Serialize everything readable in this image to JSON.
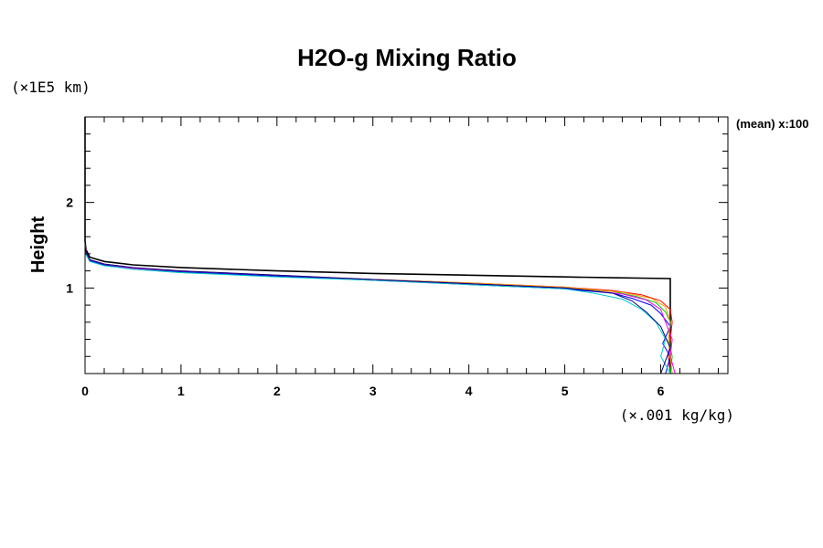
{
  "chart_data": {
    "type": "line",
    "title": "H2O-g Mixing Ratio",
    "ylabel": "Height",
    "y_unit": "(×1E5 km)",
    "x_unit": "(×.001 kg/kg)",
    "annotation": "(mean) x:100",
    "xlim": [
      0,
      6.7
    ],
    "ylim": [
      0,
      3.0
    ],
    "x_ticks": [
      "0",
      "1",
      "2",
      "3",
      "4",
      "5",
      "6"
    ],
    "y_ticks": [
      "1",
      "2"
    ],
    "series": [
      {
        "color": "#000000",
        "x": [
          6.1,
          6.1,
          6.1,
          6.1,
          6.1,
          6.1,
          5.5,
          5.0,
          4.0,
          3.0,
          2.0,
          1.0,
          0.5,
          0.2,
          0.05,
          0.01,
          0.0,
          0.0
        ],
        "y": [
          0.0,
          0.3,
          0.5,
          0.8,
          1.0,
          1.11,
          1.12,
          1.13,
          1.15,
          1.17,
          1.2,
          1.24,
          1.27,
          1.31,
          1.36,
          1.45,
          1.55,
          3.0
        ]
      },
      {
        "color": "#ff0000",
        "x": [
          6.1,
          6.08,
          6.1,
          6.12,
          6.1,
          6.0,
          5.8,
          5.5,
          5.0,
          4.0,
          3.0,
          2.0,
          1.0,
          0.5,
          0.2,
          0.05,
          0.01,
          0.0,
          0.0
        ],
        "y": [
          0.0,
          0.2,
          0.4,
          0.6,
          0.75,
          0.85,
          0.92,
          0.97,
          1.01,
          1.06,
          1.1,
          1.14,
          1.19,
          1.23,
          1.28,
          1.33,
          1.42,
          1.52,
          3.0
        ]
      },
      {
        "color": "#00cc00",
        "x": [
          6.1,
          6.12,
          6.08,
          6.1,
          6.05,
          5.95,
          5.75,
          5.5,
          5.0,
          4.0,
          3.0,
          2.0,
          1.0,
          0.5,
          0.2,
          0.05,
          0.01,
          0.0,
          0.0
        ],
        "y": [
          0.0,
          0.2,
          0.4,
          0.6,
          0.72,
          0.83,
          0.9,
          0.96,
          1.0,
          1.05,
          1.1,
          1.14,
          1.18,
          1.22,
          1.27,
          1.32,
          1.41,
          1.5,
          3.0
        ]
      },
      {
        "color": "#0000ff",
        "x": [
          6.05,
          6.1,
          6.02,
          6.1,
          6.0,
          5.9,
          5.7,
          5.5,
          5.0,
          4.0,
          3.0,
          2.0,
          1.0,
          0.5,
          0.2,
          0.05,
          0.01,
          0.0,
          0.0
        ],
        "y": [
          0.0,
          0.2,
          0.35,
          0.55,
          0.7,
          0.8,
          0.88,
          0.94,
          0.99,
          1.04,
          1.09,
          1.14,
          1.19,
          1.23,
          1.27,
          1.32,
          1.4,
          1.5,
          3.0
        ]
      },
      {
        "color": "#00cccc",
        "x": [
          6.1,
          6.0,
          6.05,
          5.95,
          5.8,
          5.6,
          5.3,
          5.0,
          4.0,
          3.0,
          2.0,
          1.0,
          0.5,
          0.2,
          0.05,
          0.01,
          0.0,
          0.0
        ],
        "y": [
          0.0,
          0.2,
          0.4,
          0.6,
          0.75,
          0.87,
          0.94,
          0.99,
          1.04,
          1.09,
          1.13,
          1.18,
          1.22,
          1.26,
          1.31,
          1.39,
          1.48,
          3.0
        ]
      },
      {
        "color": "#ff00ff",
        "x": [
          6.15,
          6.1,
          6.12,
          6.05,
          6.0,
          5.85,
          5.6,
          5.0,
          4.0,
          3.0,
          2.0,
          1.0,
          0.5,
          0.2,
          0.05,
          0.01,
          0.0,
          0.0
        ],
        "y": [
          0.0,
          0.2,
          0.4,
          0.6,
          0.75,
          0.86,
          0.93,
          1.0,
          1.05,
          1.1,
          1.15,
          1.2,
          1.23,
          1.28,
          1.33,
          1.42,
          1.52,
          3.0
        ]
      },
      {
        "color": "#ff9900",
        "x": [
          6.12,
          6.1,
          6.08,
          6.1,
          6.05,
          5.9,
          5.6,
          5.0,
          4.0,
          3.0,
          2.0,
          1.0,
          0.5,
          0.2,
          0.05,
          0.01,
          0.0,
          0.0
        ],
        "y": [
          0.0,
          0.2,
          0.4,
          0.6,
          0.78,
          0.88,
          0.95,
          1.01,
          1.06,
          1.1,
          1.15,
          1.2,
          1.24,
          1.28,
          1.33,
          1.42,
          1.51,
          3.0
        ]
      },
      {
        "color": "#000088",
        "x": [
          6.0,
          6.05,
          6.1,
          6.0,
          5.85,
          5.7,
          5.5,
          5.0,
          4.0,
          3.0,
          2.0,
          1.0,
          0.5,
          0.2,
          0.05,
          0.01,
          0.0,
          0.0
        ],
        "y": [
          0.0,
          0.15,
          0.3,
          0.55,
          0.72,
          0.85,
          0.94,
          1.0,
          1.05,
          1.1,
          1.15,
          1.2,
          1.24,
          1.28,
          1.33,
          1.42,
          1.5,
          3.0
        ]
      }
    ]
  }
}
